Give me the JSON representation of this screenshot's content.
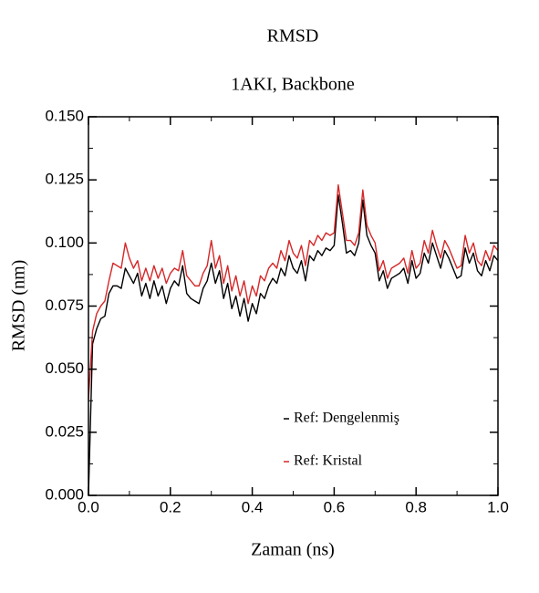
{
  "chart_data": {
    "type": "line",
    "title": "RMSD",
    "subtitle": "1AKI, Backbone",
    "xlabel": "Zaman (ns)",
    "ylabel": "RMSD (nm)",
    "x": [
      0,
      0.01,
      0.02,
      0.03,
      0.04,
      0.05,
      0.06,
      0.07,
      0.08,
      0.09,
      0.1,
      0.11,
      0.12,
      0.13,
      0.14,
      0.15,
      0.16,
      0.17,
      0.18,
      0.19,
      0.2,
      0.21,
      0.22,
      0.23,
      0.24,
      0.25,
      0.26,
      0.27,
      0.28,
      0.29,
      0.3,
      0.31,
      0.32,
      0.33,
      0.34,
      0.35,
      0.36,
      0.37,
      0.38,
      0.39,
      0.4,
      0.41,
      0.42,
      0.43,
      0.44,
      0.45,
      0.46,
      0.47,
      0.48,
      0.49,
      0.5,
      0.51,
      0.52,
      0.53,
      0.54,
      0.55,
      0.56,
      0.57,
      0.58,
      0.59,
      0.6,
      0.61,
      0.62,
      0.63,
      0.64,
      0.65,
      0.66,
      0.67,
      0.68,
      0.69,
      0.7,
      0.71,
      0.72,
      0.73,
      0.74,
      0.75,
      0.76,
      0.77,
      0.78,
      0.79,
      0.8,
      0.81,
      0.82,
      0.83,
      0.84,
      0.85,
      0.86,
      0.87,
      0.88,
      0.89,
      0.9,
      0.91,
      0.92,
      0.93,
      0.94,
      0.95,
      0.96,
      0.97,
      0.98,
      0.99,
      1.0
    ],
    "series": [
      {
        "name": "Ref: Dengelenmiş",
        "color": "#000000",
        "values": [
          0.0,
          0.06,
          0.066,
          0.07,
          0.071,
          0.08,
          0.083,
          0.083,
          0.082,
          0.09,
          0.087,
          0.084,
          0.088,
          0.079,
          0.084,
          0.078,
          0.085,
          0.079,
          0.083,
          0.076,
          0.082,
          0.085,
          0.083,
          0.091,
          0.08,
          0.078,
          0.077,
          0.076,
          0.082,
          0.085,
          0.092,
          0.084,
          0.089,
          0.078,
          0.084,
          0.074,
          0.079,
          0.071,
          0.078,
          0.069,
          0.076,
          0.072,
          0.08,
          0.078,
          0.083,
          0.086,
          0.084,
          0.09,
          0.087,
          0.095,
          0.09,
          0.088,
          0.093,
          0.085,
          0.095,
          0.093,
          0.097,
          0.095,
          0.098,
          0.097,
          0.099,
          0.119,
          0.108,
          0.096,
          0.097,
          0.095,
          0.1,
          0.117,
          0.103,
          0.099,
          0.096,
          0.085,
          0.089,
          0.082,
          0.086,
          0.087,
          0.088,
          0.09,
          0.084,
          0.093,
          0.086,
          0.088,
          0.096,
          0.092,
          0.1,
          0.095,
          0.09,
          0.097,
          0.094,
          0.09,
          0.086,
          0.087,
          0.098,
          0.092,
          0.096,
          0.089,
          0.087,
          0.093,
          0.089,
          0.095,
          0.093
        ]
      },
      {
        "name": "Ref: Kristal",
        "color": "#d62728",
        "values": [
          0.038,
          0.065,
          0.072,
          0.075,
          0.077,
          0.085,
          0.092,
          0.091,
          0.09,
          0.1,
          0.094,
          0.09,
          0.093,
          0.085,
          0.09,
          0.085,
          0.091,
          0.086,
          0.09,
          0.084,
          0.088,
          0.09,
          0.089,
          0.097,
          0.087,
          0.085,
          0.083,
          0.083,
          0.088,
          0.091,
          0.101,
          0.09,
          0.095,
          0.084,
          0.091,
          0.081,
          0.087,
          0.079,
          0.085,
          0.076,
          0.083,
          0.079,
          0.087,
          0.085,
          0.09,
          0.092,
          0.09,
          0.097,
          0.093,
          0.101,
          0.096,
          0.094,
          0.099,
          0.091,
          0.101,
          0.099,
          0.103,
          0.101,
          0.104,
          0.103,
          0.104,
          0.123,
          0.112,
          0.101,
          0.101,
          0.099,
          0.104,
          0.121,
          0.107,
          0.103,
          0.1,
          0.089,
          0.093,
          0.086,
          0.09,
          0.091,
          0.092,
          0.094,
          0.088,
          0.097,
          0.09,
          0.092,
          0.101,
          0.096,
          0.105,
          0.099,
          0.094,
          0.101,
          0.098,
          0.094,
          0.09,
          0.091,
          0.103,
          0.096,
          0.1,
          0.093,
          0.091,
          0.097,
          0.093,
          0.099,
          0.097
        ]
      }
    ],
    "xlim": [
      0,
      1
    ],
    "xticks": [
      {
        "value": 0,
        "label": "0.0"
      },
      0.2,
      0.4,
      0.6,
      0.8,
      {
        "value": 1,
        "label": "1.0"
      }
    ],
    "ylim": [
      0,
      0.15
    ],
    "yticks": [
      {
        "value": 0,
        "label": "0.000"
      },
      {
        "value": 0.025,
        "label": "0.025"
      },
      {
        "value": 0.05,
        "label": "0.050"
      },
      {
        "value": 0.075,
        "label": "0.075"
      },
      {
        "value": 0.1,
        "label": "0.100"
      },
      {
        "value": 0.125,
        "label": "0.125"
      },
      {
        "value": 0.15,
        "label": "0.150"
      }
    ],
    "grid": false
  }
}
